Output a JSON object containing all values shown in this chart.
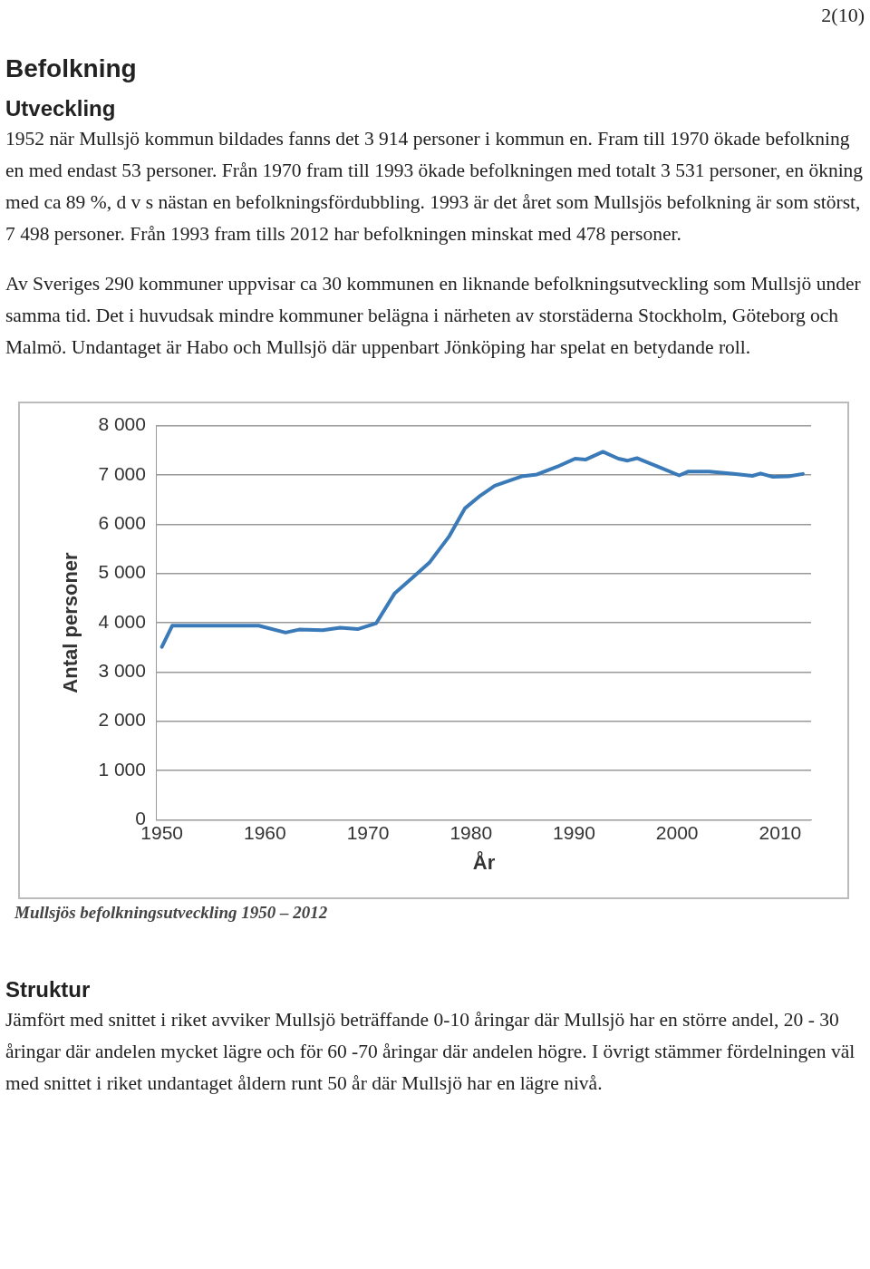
{
  "chart_data": {
    "type": "line",
    "title": "Befolkning",
    "xlabel": "År",
    "ylabel": "Antal personer",
    "annotations": [
      "2(10)",
      "Utveckling",
      "1952 när Mullsjö kommun bildades fanns det 3 914 personer i kommun en. Fram till 1970 ökade befolkning en med endast 53 personer. Från 1970 fram till 1993 ökade befolkningen med totalt 3 531 personer, en ökning med ca 89 %, d v s nästan en befolkningsfördubbling. 1993 är det året som Mullsjös befolkning är som störst, 7 498 personer. Från 1993 fram tills 2012 har befolkningen minskat med 478 personer.",
      "Av Sveriges 290 kommuner uppvisar ca 30 kommunen en liknande befolkningsutveckling som Mullsjö under samma tid. Det i huvudsak mindre kommuner belägna i närheten av storstäderna Stockholm, Göteborg och Malmö. Undantaget är Habo och Mullsjö där uppenbart Jönköping har spelat en betydande roll.",
      "Mullsjös befolkningsutveckling 1950 – 2012",
      "Struktur",
      "Jämfört med snittet i riket avviker Mullsjö beträffande 0-10 åringar där Mullsjö har en större andel, 20 - 30 åringar där andelen mycket lägre och för 60 -70 åringar där andelen högre. I övrigt stämmer fördelningen väl med snittet i riket undantaget åldern runt 50 år där Mullsjö har en lägre nivå."
    ],
    "x": [
      1950,
      1951,
      1959.4,
      1962,
      1963.3,
      1965.6,
      1967.3,
      1969,
      1970.8,
      1972.6,
      1974.4,
      1976,
      1977.9,
      1979.4,
      1980.9,
      1982.3,
      1984.9,
      1986.4,
      1988.4,
      1990.1,
      1991.1,
      1992.8,
      1994.3,
      1995.2,
      1996.1,
      1998.1,
      2000.2,
      2001.1,
      2003.1,
      2005.5,
      2007.3,
      2008.1,
      2009.3,
      2010.8,
      2012.2
    ],
    "series": [
      {
        "color": "#3a7ab8",
        "values": [
          3510,
          3940,
          3940,
          3800,
          3860,
          3850,
          3900,
          3870,
          3990,
          4600,
          4930,
          5230,
          5760,
          6320,
          6580,
          6780,
          6970,
          7010,
          7170,
          7330,
          7310,
          7470,
          7330,
          7290,
          7340,
          7170,
          6990,
          7070,
          7070,
          7020,
          6980,
          7030,
          6960,
          6970,
          7020
        ]
      }
    ],
    "xlim": [
      1949.5,
      2013
    ],
    "xticks": [
      1950,
      1960,
      1970,
      1980,
      1990,
      2000,
      2010
    ],
    "ylim": [
      0,
      8000
    ],
    "yticks": [
      {
        "value": 0,
        "label": "0"
      },
      {
        "value": 1000,
        "label": "1 000"
      },
      {
        "value": 2000,
        "label": "2 000"
      },
      {
        "value": 3000,
        "label": "3 000"
      },
      {
        "value": 4000,
        "label": "4 000"
      },
      {
        "value": 5000,
        "label": "5 000"
      },
      {
        "value": 6000,
        "label": "6 000"
      },
      {
        "value": 7000,
        "label": "7 000"
      },
      {
        "value": 8000,
        "label": "8 000"
      }
    ],
    "grid": "y",
    "legend": false,
    "marker": "none",
    "line_style": "solid"
  }
}
